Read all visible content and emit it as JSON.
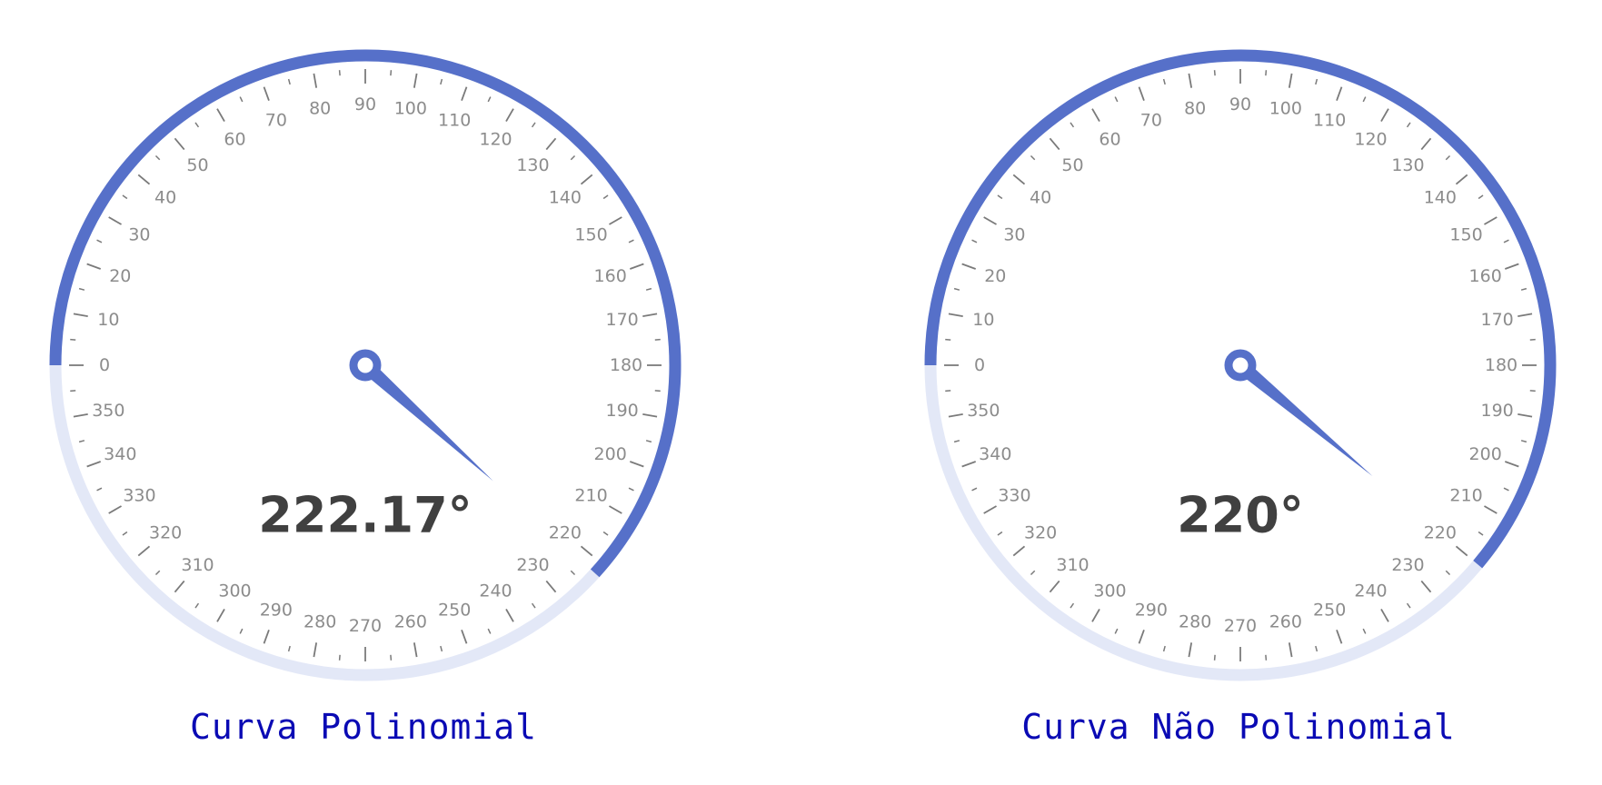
{
  "colors": {
    "accent": "#5670c9",
    "track": "#e3e8f7",
    "tick": "#7a7a7a",
    "tick_label": "#8c8c8c",
    "value_text": "#404040",
    "caption": "#0a0ab4"
  },
  "value_suffix": "°",
  "chart_data": [
    {
      "type": "gauge",
      "title": "Curva Polinomial",
      "value": 222.17,
      "value_label": "222.17°",
      "range": [
        0,
        360
      ],
      "major_step": 10,
      "minor_step": 5,
      "tick_labels": [
        "0",
        "10",
        "20",
        "30",
        "40",
        "50",
        "60",
        "70",
        "80",
        "90",
        "100",
        "110",
        "120",
        "130",
        "140",
        "150",
        "160",
        "170",
        "180",
        "190",
        "200",
        "210",
        "220",
        "230",
        "240",
        "250",
        "260",
        "270",
        "280",
        "290",
        "300",
        "310",
        "320",
        "330",
        "340",
        "350"
      ]
    },
    {
      "type": "gauge",
      "title": "Curva Não Polinomial",
      "value": 220,
      "value_label": "220°",
      "range": [
        0,
        360
      ],
      "major_step": 10,
      "minor_step": 5,
      "tick_labels": [
        "0",
        "10",
        "20",
        "30",
        "40",
        "50",
        "60",
        "70",
        "80",
        "90",
        "100",
        "110",
        "120",
        "130",
        "140",
        "150",
        "160",
        "170",
        "180",
        "190",
        "200",
        "210",
        "220",
        "230",
        "240",
        "250",
        "260",
        "270",
        "280",
        "290",
        "300",
        "310",
        "320",
        "330",
        "340",
        "350"
      ]
    }
  ]
}
